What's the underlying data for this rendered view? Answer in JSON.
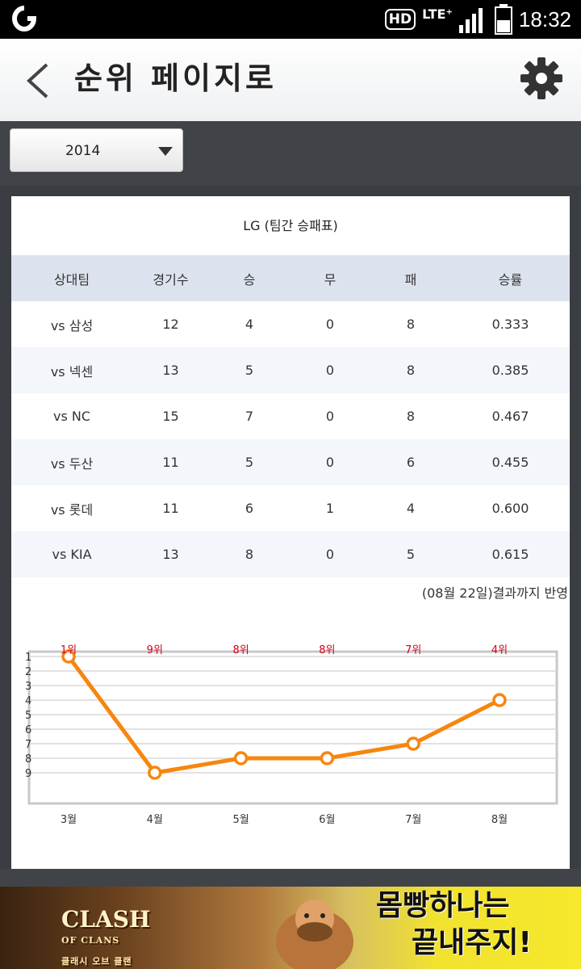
{
  "status_bar": {
    "network_badge": "HD",
    "lte_label": "LTE⁺",
    "time": "18:32"
  },
  "header": {
    "title": "순위 페이지로"
  },
  "filter": {
    "selected_year": "2014"
  },
  "record": {
    "title": "LG (팀간 승패표)",
    "columns": [
      "상대팀",
      "경기수",
      "승",
      "무",
      "패",
      "승률"
    ],
    "rows": [
      [
        "vs 삼성",
        "12",
        "4",
        "0",
        "8",
        "0.333"
      ],
      [
        "vs 넥센",
        "13",
        "5",
        "0",
        "8",
        "0.385"
      ],
      [
        "vs NC",
        "15",
        "7",
        "0",
        "8",
        "0.467"
      ],
      [
        "vs 두산",
        "11",
        "5",
        "0",
        "6",
        "0.455"
      ],
      [
        "vs 롯데",
        "11",
        "6",
        "1",
        "4",
        "0.600"
      ],
      [
        "vs KIA",
        "13",
        "8",
        "0",
        "5",
        "0.615"
      ]
    ],
    "note": "(08월 22일)결과까지 반영"
  },
  "chart_data": {
    "type": "line",
    "categories": [
      "3월",
      "4월",
      "5월",
      "6월",
      "7월",
      "8월"
    ],
    "values": [
      1,
      9,
      8,
      8,
      7,
      4
    ],
    "point_labels": [
      "1위",
      "9위",
      "8위",
      "8위",
      "7위",
      "4위"
    ],
    "y_ticks": [
      "1",
      "2",
      "3",
      "4",
      "5",
      "6",
      "7",
      "8",
      "9"
    ],
    "ylim": [
      1,
      9
    ],
    "y_inverted": true,
    "grid": true,
    "line_color": "#f7860f",
    "label_color": "#d0021b"
  },
  "ad": {
    "logo_line1": "CLASH",
    "logo_line2": "OF CLANS",
    "logo_sub": "클래시 오브 클랜",
    "copy_line1": "몸빵하나는",
    "copy_line2": "끝내주지!"
  }
}
